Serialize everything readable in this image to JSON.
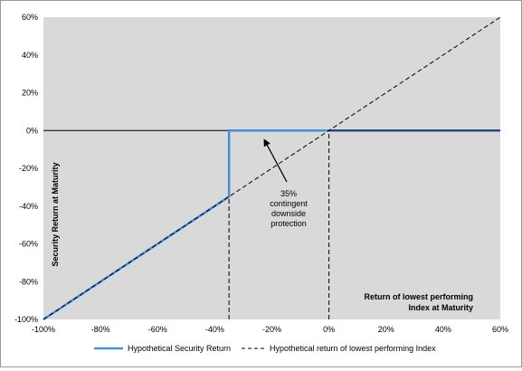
{
  "chart_data": {
    "type": "line",
    "title": "",
    "xlabel_lines": [
      "Return of lowest performing",
      "Index at Maturity"
    ],
    "ylabel": "Security Return at Maturity",
    "xlim": [
      -100,
      60
    ],
    "ylim": [
      -100,
      60
    ],
    "x_ticks": [
      "-100%",
      "-80%",
      "-60%",
      "-40%",
      "-20%",
      "0%",
      "20%",
      "40%",
      "60%"
    ],
    "y_ticks": [
      "60%",
      "40%",
      "20%",
      "0%",
      "-20%",
      "-40%",
      "-60%",
      "-80%",
      "-100%"
    ],
    "series": [
      {
        "name": "Hypothetical Security Return",
        "color": "#4a8fd6",
        "style": "solid",
        "points": [
          [
            -100,
            -100
          ],
          [
            -35,
            -35
          ],
          [
            -35,
            0
          ],
          [
            60,
            0
          ]
        ]
      },
      {
        "name": "Hypothetical return of lowest performing Index",
        "color": "#000000",
        "style": "dashed",
        "points": [
          [
            -100,
            -100
          ],
          [
            60,
            60
          ]
        ]
      }
    ],
    "reference_lines": [
      {
        "orientation": "vertical",
        "x": -35,
        "from_y": -100,
        "to_y": 0,
        "style": "dashed"
      },
      {
        "orientation": "vertical",
        "x": 0,
        "from_y": -100,
        "to_y": 0,
        "style": "dashed"
      }
    ],
    "annotation": {
      "lines": [
        "35%",
        "contingent",
        "downside",
        "protection"
      ],
      "arrow_tip": [
        -23,
        0
      ]
    },
    "plot_background": "#d9d9d9",
    "grid": false,
    "legend_position": "bottom"
  }
}
